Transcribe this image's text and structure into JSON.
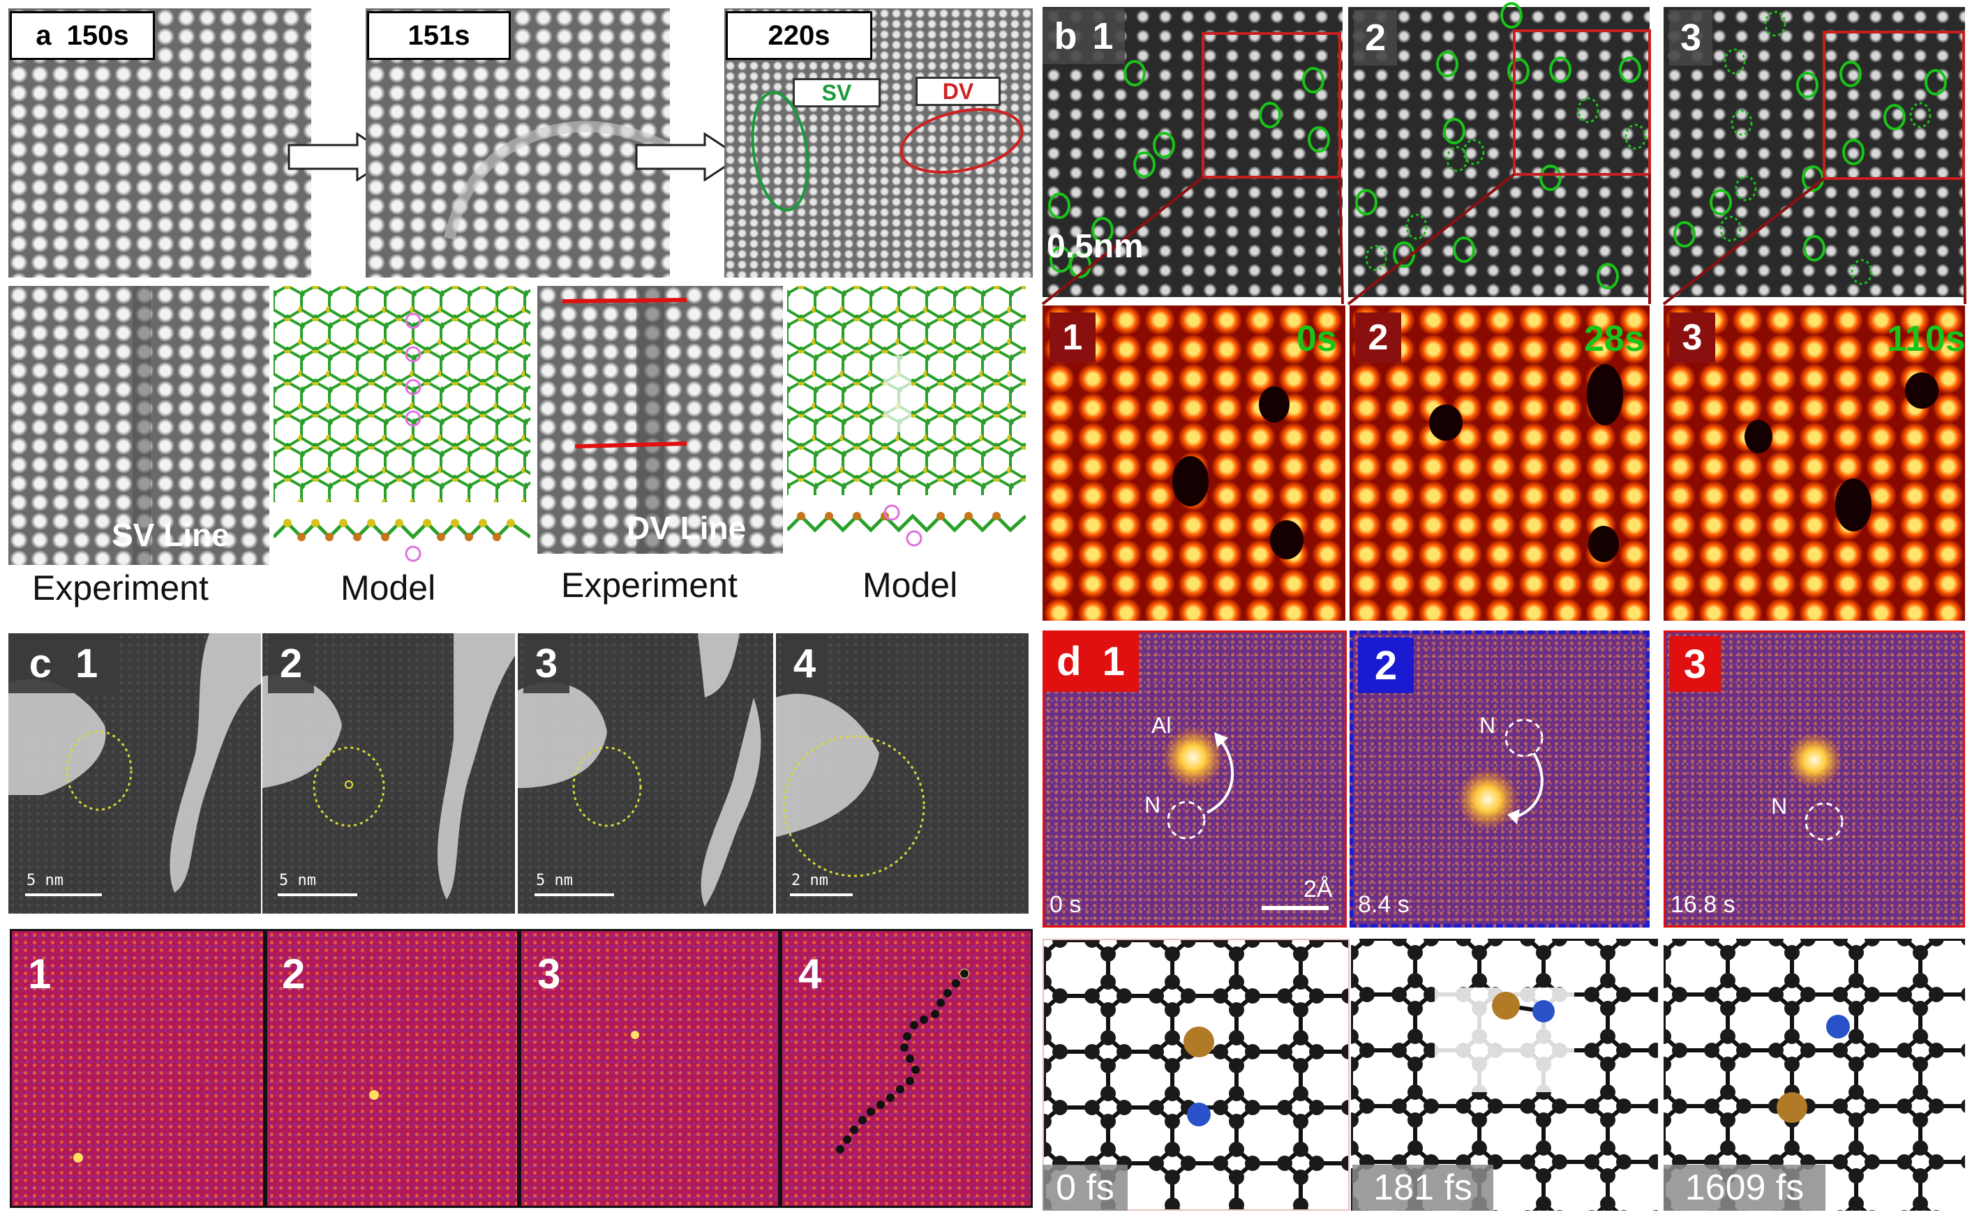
{
  "panel_a": {
    "letter": "a",
    "times": [
      "150s",
      "151s",
      "220s"
    ],
    "sv_tag": "SV",
    "dv_tag": "DV",
    "sv_line": "SV Line",
    "dv_line": "DV Line",
    "captions": [
      "Experiment",
      "Model",
      "Experiment",
      "Model"
    ]
  },
  "panel_b": {
    "letter": "b",
    "frame_numbers": [
      "1",
      "2",
      "3"
    ],
    "scale": "0.5nm",
    "times": [
      "0s",
      "28s",
      "110s"
    ]
  },
  "panel_c": {
    "letter": "c",
    "frame_numbers": [
      "1",
      "2",
      "3",
      "4"
    ],
    "scales": [
      "5 nm",
      "5 nm",
      "5 nm",
      "2 nm"
    ],
    "bottom_numbers": [
      "1",
      "2",
      "3",
      "4"
    ]
  },
  "panel_d": {
    "letter": "d",
    "frame_numbers": [
      "1",
      "2",
      "3"
    ],
    "atom_labels": {
      "al": "Al",
      "n1": "N",
      "n2": "N",
      "n3": "N"
    },
    "scale": "2Å",
    "times": [
      "0 s",
      "8.4 s",
      "16.8 s"
    ],
    "sim_times": [
      "0 fs",
      "181 fs",
      "1609 fs"
    ]
  },
  "colors": {
    "green_circle": "#19c419",
    "red_box": "#c81e1e",
    "red_line": "#e01010",
    "sv_green": "#1a9a3a",
    "dv_red": "#d02020"
  }
}
